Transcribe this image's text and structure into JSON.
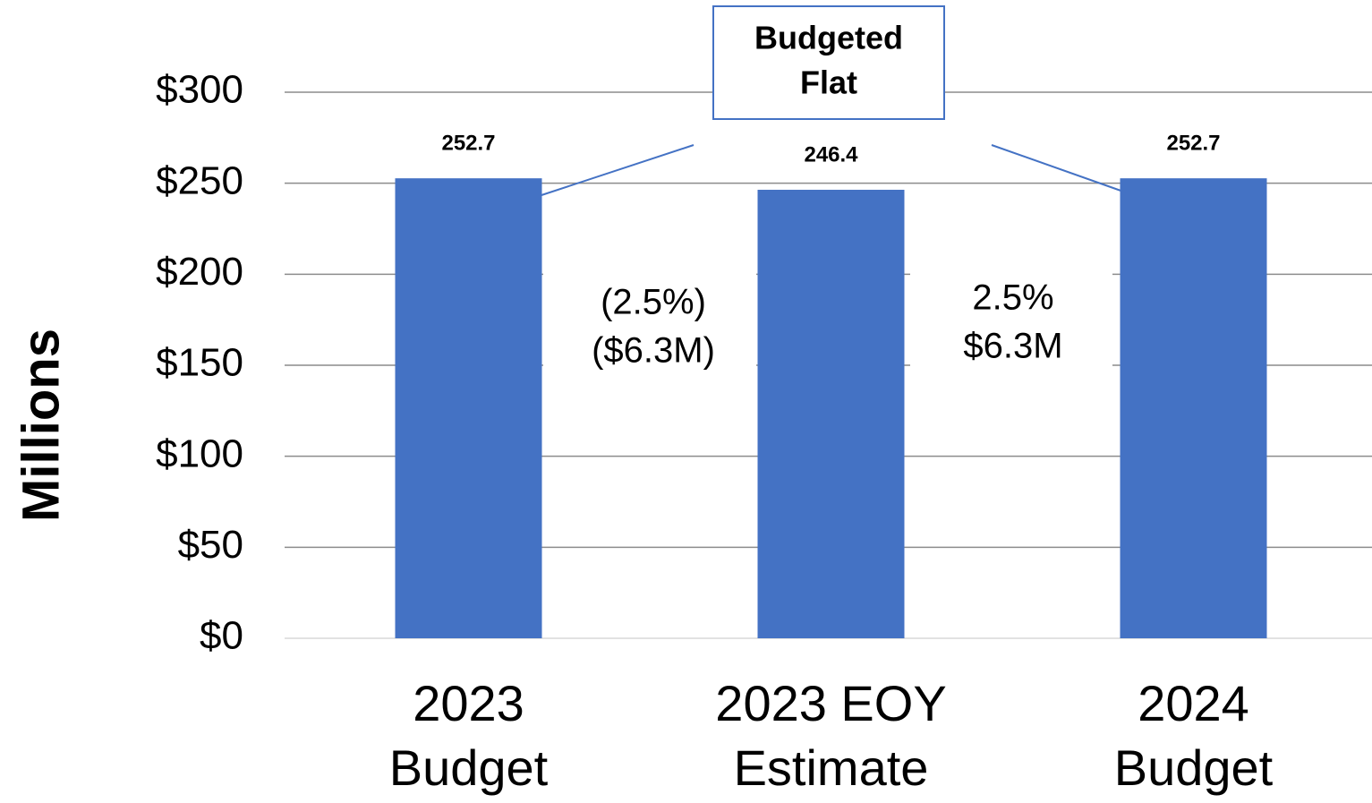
{
  "chart_data": {
    "type": "bar",
    "y_label": "Millions",
    "categories": [
      [
        "2023",
        "Budget"
      ],
      [
        "2023 EOY",
        "Estimate"
      ],
      [
        "2024",
        "Budget"
      ]
    ],
    "values": [
      252.7,
      246.4,
      252.7
    ],
    "color": "#4472c4",
    "ylim": [
      0,
      300
    ],
    "yticks": [
      {
        "value": 0,
        "label": "$0"
      },
      {
        "value": 50,
        "label": "$50"
      },
      {
        "value": 100,
        "label": "$100"
      },
      {
        "value": 150,
        "label": "$150"
      },
      {
        "value": 200,
        "label": "$200"
      },
      {
        "value": 250,
        "label": "$250"
      },
      {
        "value": 300,
        "label": "$300"
      }
    ],
    "grid": true,
    "annotations": [
      {
        "lines": [
          "Budgeted",
          "Flat"
        ]
      },
      {
        "lines": [
          "(2.5%)",
          "($6.3M)"
        ]
      },
      {
        "lines": [
          "2.5%",
          "$6.3M"
        ]
      }
    ]
  }
}
